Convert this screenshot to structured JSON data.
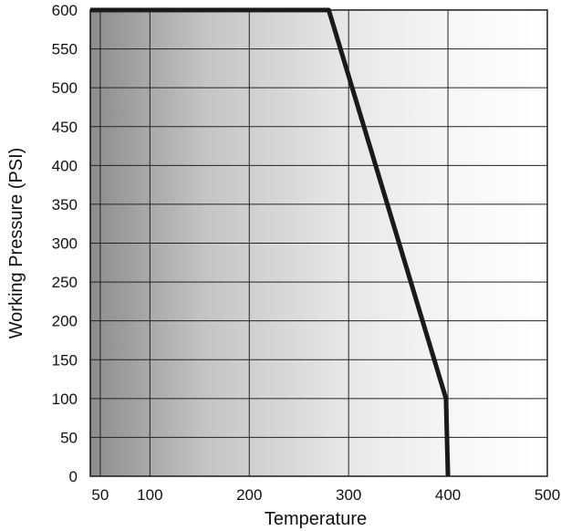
{
  "chart_data": {
    "type": "line",
    "xlabel": "Temperature",
    "ylabel": "Working Pressure (PSI)",
    "xlim": [
      40,
      500
    ],
    "ylim": [
      0,
      600
    ],
    "x_ticks": [
      50,
      100,
      200,
      300,
      400,
      500
    ],
    "x_tick_labels": [
      "50",
      "100",
      "200",
      "300",
      "400",
      "500"
    ],
    "y_ticks": [
      0,
      50,
      100,
      150,
      200,
      250,
      300,
      350,
      400,
      450,
      500,
      550,
      600
    ],
    "y_tick_labels": [
      "0",
      "50",
      "100",
      "150",
      "200",
      "250",
      "300",
      "350",
      "400",
      "450",
      "500",
      "550",
      "600"
    ],
    "grid": true,
    "background": "gray-to-white gradient (dark at low temperature, light at high temperature)",
    "series": [
      {
        "x": [
          40,
          280,
          398,
          400
        ],
        "y": [
          600,
          600,
          100,
          0
        ]
      }
    ],
    "colors": {
      "line": "#1a1a1a",
      "grid": "#222222",
      "gradient_start": "#8c8c8c",
      "gradient_end": "#ffffff"
    }
  }
}
